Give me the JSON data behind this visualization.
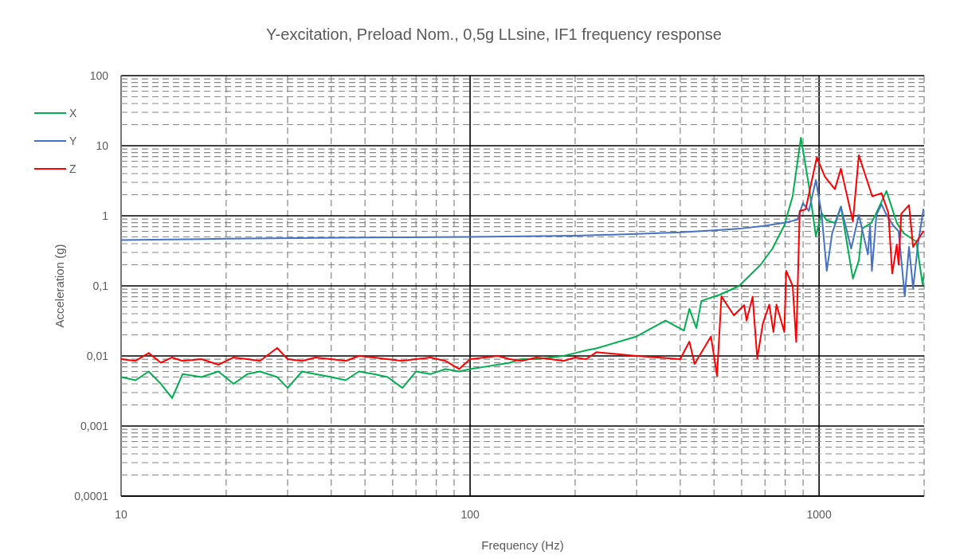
{
  "chart_data": {
    "type": "line",
    "title": "Y-excitation, Preload Nom., 0,5g LLsine, IF1 frequency response",
    "xlabel": "Frequency (Hz)",
    "ylabel": "Acceleration (g)",
    "log": "xy",
    "grid": true,
    "legend": "left",
    "xlim": [
      10,
      2000
    ],
    "ylim": [
      0.0001,
      100
    ],
    "xticks": [
      10,
      {
        "value": 20,
        "label": null
      },
      {
        "value": 30,
        "label": null
      },
      {
        "value": 40,
        "label": null
      },
      {
        "value": 50,
        "label": null
      },
      {
        "value": 60,
        "label": null
      },
      {
        "value": 70,
        "label": null
      },
      {
        "value": 80,
        "label": null
      },
      {
        "value": 90,
        "label": null
      },
      100,
      {
        "value": 200,
        "label": null
      },
      {
        "value": 300,
        "label": null
      },
      {
        "value": 400,
        "label": null
      },
      {
        "value": 500,
        "label": null
      },
      {
        "value": 600,
        "label": null
      },
      {
        "value": 700,
        "label": null
      },
      {
        "value": 800,
        "label": null
      },
      {
        "value": 900,
        "label": null
      },
      1000,
      {
        "value": 2000,
        "label": null
      }
    ],
    "yticks": [
      {
        "value": 0.0001,
        "label": "0,0001"
      },
      {
        "value": 0.0002,
        "label": null
      },
      {
        "value": 0.0003,
        "label": null
      },
      {
        "value": 0.0004,
        "label": null
      },
      {
        "value": 0.0005,
        "label": null
      },
      {
        "value": 0.0006,
        "label": null
      },
      {
        "value": 0.0007,
        "label": null
      },
      {
        "value": 0.0008,
        "label": null
      },
      {
        "value": 0.0009,
        "label": null
      },
      {
        "value": 0.001,
        "label": "0,001"
      },
      {
        "value": 0.002,
        "label": null
      },
      {
        "value": 0.003,
        "label": null
      },
      {
        "value": 0.004,
        "label": null
      },
      {
        "value": 0.005,
        "label": null
      },
      {
        "value": 0.006,
        "label": null
      },
      {
        "value": 0.007,
        "label": null
      },
      {
        "value": 0.008,
        "label": null
      },
      {
        "value": 0.009,
        "label": null
      },
      {
        "value": 0.01,
        "label": "0,01"
      },
      {
        "value": 0.02,
        "label": null
      },
      {
        "value": 0.03,
        "label": null
      },
      {
        "value": 0.04,
        "label": null
      },
      {
        "value": 0.05,
        "label": null
      },
      {
        "value": 0.06,
        "label": null
      },
      {
        "value": 0.07,
        "label": null
      },
      {
        "value": 0.08,
        "label": null
      },
      {
        "value": 0.09,
        "label": null
      },
      {
        "value": 0.1,
        "label": "0,1"
      },
      {
        "value": 0.2,
        "label": null
      },
      {
        "value": 0.3,
        "label": null
      },
      {
        "value": 0.4,
        "label": null
      },
      {
        "value": 0.5,
        "label": null
      },
      {
        "value": 0.6,
        "label": null
      },
      {
        "value": 0.7,
        "label": null
      },
      {
        "value": 0.8,
        "label": null
      },
      {
        "value": 0.9,
        "label": null
      },
      1,
      {
        "value": 2,
        "label": null
      },
      {
        "value": 3,
        "label": null
      },
      {
        "value": 4,
        "label": null
      },
      {
        "value": 5,
        "label": null
      },
      {
        "value": 6,
        "label": null
      },
      {
        "value": 7,
        "label": null
      },
      {
        "value": 8,
        "label": null
      },
      {
        "value": 9,
        "label": null
      },
      10,
      {
        "value": 20,
        "label": null
      },
      {
        "value": 30,
        "label": null
      },
      {
        "value": 40,
        "label": null
      },
      {
        "value": 50,
        "label": null
      },
      {
        "value": 60,
        "label": null
      },
      {
        "value": 70,
        "label": null
      },
      {
        "value": 80,
        "label": null
      },
      {
        "value": 90,
        "label": null
      },
      100
    ],
    "series": [
      {
        "name": "X",
        "color": "#00b050",
        "x": [
          10,
          11,
          12,
          13,
          14,
          15,
          17,
          19,
          21,
          23,
          25,
          28,
          30,
          33,
          36,
          40,
          44,
          48,
          53,
          58,
          64,
          70,
          77,
          85,
          93,
          100,
          110,
          120,
          130,
          140,
          155,
          170,
          185,
          200,
          215,
          230,
          300,
          363,
          410,
          425,
          445,
          460,
          520,
          590,
          680,
          735,
          795,
          840,
          887,
          935,
          979,
          1016,
          1052,
          1110,
          1155,
          1250,
          1300,
          1330,
          1410,
          1450,
          1560,
          1670,
          1750,
          1900,
          1980,
          2000
        ],
        "values": [
          0.005,
          0.0045,
          0.006,
          0.004,
          0.0025,
          0.0055,
          0.005,
          0.006,
          0.004,
          0.0055,
          0.006,
          0.005,
          0.0035,
          0.006,
          0.0055,
          0.005,
          0.0045,
          0.006,
          0.0055,
          0.005,
          0.0035,
          0.006,
          0.0055,
          0.0065,
          0.006,
          0.0065,
          0.007,
          0.0075,
          0.008,
          0.009,
          0.009,
          0.0095,
          0.01,
          0.011,
          0.012,
          0.0128,
          0.019,
          0.032,
          0.023,
          0.047,
          0.025,
          0.061,
          0.075,
          0.1,
          0.2,
          0.34,
          0.73,
          1.9,
          13,
          2.7,
          0.51,
          1.1,
          0.86,
          0.79,
          1.35,
          0.127,
          0.23,
          0.66,
          0.79,
          1.03,
          2.26,
          0.79,
          0.56,
          0.43,
          0.104,
          0.15
        ]
      },
      {
        "name": "Y",
        "color": "#4472c4",
        "x": [
          10,
          20,
          50,
          100,
          200,
          300,
          400,
          500,
          600,
          700,
          800,
          867,
          899,
          935,
          979,
          1016,
          1052,
          1090,
          1155,
          1236,
          1300,
          1380,
          1400,
          1417,
          1460,
          1510,
          1550,
          1630,
          1690,
          1760,
          1810,
          1860,
          1920,
          1990
        ],
        "values": [
          0.45,
          0.47,
          0.49,
          0.5,
          0.52,
          0.55,
          0.58,
          0.62,
          0.66,
          0.72,
          0.8,
          0.88,
          1.52,
          1.17,
          3.25,
          1.1,
          0.164,
          0.56,
          1.35,
          0.34,
          1.03,
          0.28,
          0.73,
          0.164,
          1.03,
          1.46,
          1.1,
          0.73,
          0.6,
          0.071,
          0.36,
          0.092,
          0.39,
          1.23
        ]
      },
      {
        "name": "Z",
        "color": "#ff0000",
        "x": [
          10,
          11,
          12,
          13,
          14,
          15,
          17,
          19,
          21,
          23,
          25,
          28,
          30,
          33,
          36,
          40,
          44,
          48,
          53,
          58,
          64,
          70,
          77,
          85,
          93,
          100,
          110,
          120,
          130,
          140,
          155,
          170,
          185,
          200,
          215,
          230,
          300,
          400,
          425,
          440,
          490,
          510,
          525,
          570,
          610,
          620,
          645,
          665,
          690,
          720,
          740,
          755,
          795,
          805,
          840,
          860,
          880,
          915,
          985,
          1040,
          1110,
          1155,
          1250,
          1300,
          1420,
          1510,
          1580,
          1620,
          1670,
          1690,
          1720,
          1810,
          1860,
          1990
        ],
        "values": [
          0.009,
          0.0085,
          0.011,
          0.008,
          0.0095,
          0.0085,
          0.009,
          0.0075,
          0.0095,
          0.009,
          0.0085,
          0.013,
          0.009,
          0.0085,
          0.0095,
          0.009,
          0.0085,
          0.01,
          0.0095,
          0.009,
          0.0085,
          0.009,
          0.0095,
          0.0085,
          0.0065,
          0.009,
          0.0095,
          0.01,
          0.009,
          0.0085,
          0.0095,
          0.009,
          0.0085,
          0.0095,
          0.009,
          0.0113,
          0.01,
          0.009,
          0.016,
          0.0077,
          0.019,
          0.0052,
          0.071,
          0.038,
          0.053,
          0.032,
          0.07,
          0.0092,
          0.029,
          0.054,
          0.022,
          0.054,
          0.022,
          0.164,
          0.1,
          0.0158,
          1.17,
          1.23,
          6.8,
          3.6,
          2.4,
          4.7,
          0.83,
          7.3,
          1.9,
          2.1,
          1.1,
          0.15,
          0.39,
          0.2,
          1.07,
          1.42,
          0.36,
          0.6
        ]
      }
    ]
  }
}
